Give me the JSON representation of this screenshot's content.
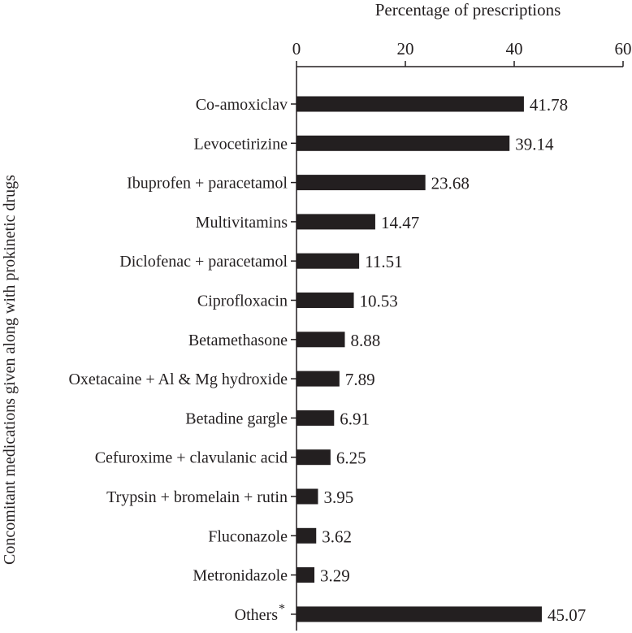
{
  "chart_data": {
    "type": "bar",
    "orientation": "horizontal",
    "xlabel": "Percentage of prescriptions",
    "ylabel": "Concomitant medications given along with prokinetic drugs",
    "xlim": [
      0,
      60
    ],
    "xticks": [
      0,
      20,
      40,
      60
    ],
    "x_axis_position": "top",
    "grid": false,
    "categories": [
      "Co-amoxiclav",
      "Levocetirizine",
      "Ibuprofen + paracetamol",
      "Multivitamins",
      "Diclofenac + paracetamol",
      "Ciprofloxacin",
      "Betamethasone",
      "Oxetacaine + Al & Mg hydroxide",
      "Betadine gargle",
      "Cefuroxime + clavulanic acid",
      "Trypsin + bromelain + rutin",
      "Fluconazole",
      "Metronidazole",
      "Others"
    ],
    "values": [
      41.78,
      39.14,
      23.68,
      14.47,
      11.51,
      10.53,
      8.88,
      7.89,
      6.91,
      6.25,
      3.95,
      3.62,
      3.29,
      45.07
    ],
    "value_labels": [
      "41.78",
      "39.14",
      "23.68",
      "14.47",
      "11.51",
      "10.53",
      "8.88",
      "7.89",
      "6.91",
      "6.25",
      "3.95",
      "3.62",
      "3.29",
      "45.07"
    ],
    "footnote_marker": "*",
    "bar_color": "#231f20"
  }
}
